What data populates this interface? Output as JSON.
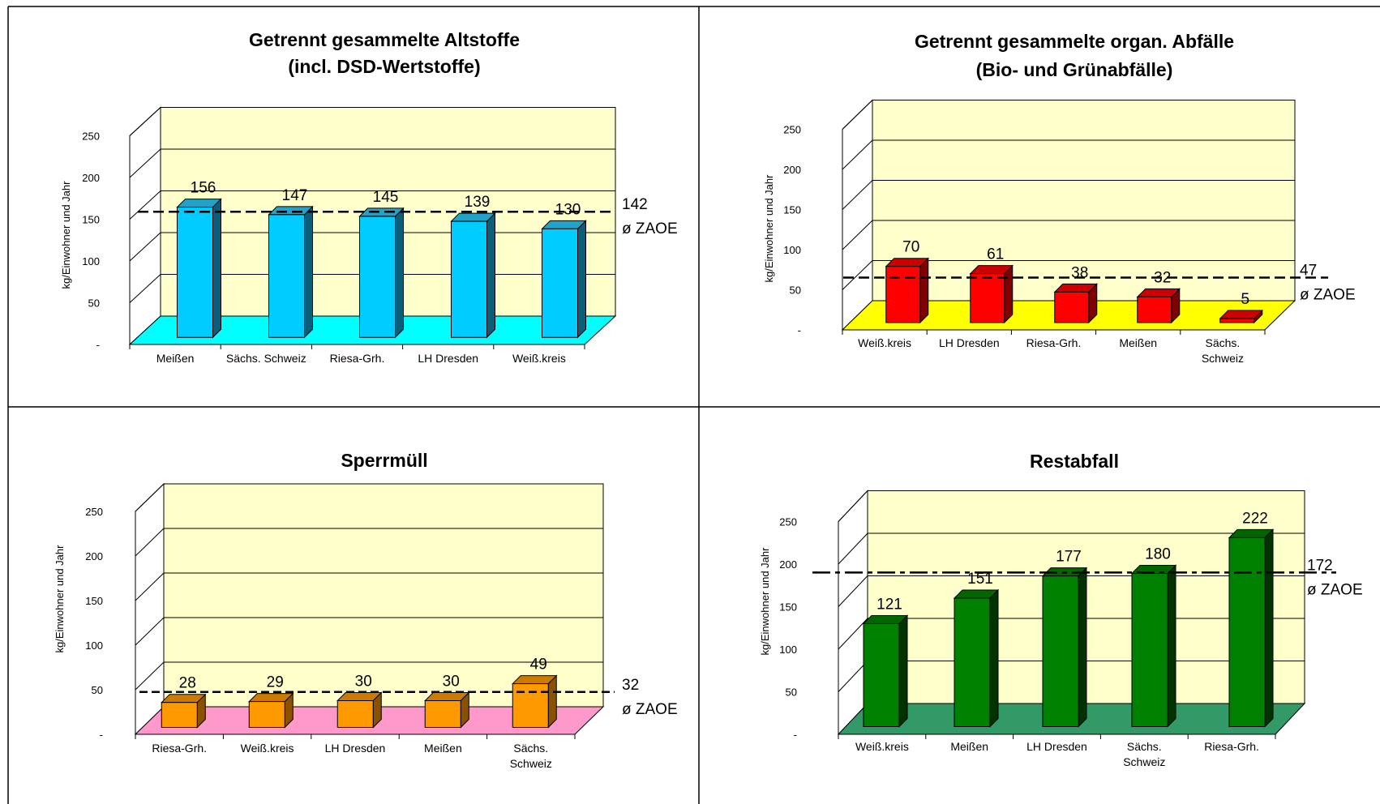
{
  "chart_data": [
    {
      "type": "bar",
      "title_line1": "Getrennt gesammelte Altstoffe",
      "title_line2": "(incl. DSD-Wertstoffe)",
      "ylabel": "kg/Einwohner und Jahr",
      "yticks": [
        "-",
        "50",
        "100",
        "150",
        "200",
        "250"
      ],
      "ylim": [
        0,
        250
      ],
      "categories": [
        [
          "Meißen"
        ],
        [
          "Sächs. Schweiz"
        ],
        [
          "Riesa-Grh."
        ],
        [
          "LH Dresden"
        ],
        [
          "Weiß.kreis"
        ]
      ],
      "values": [
        156,
        147,
        145,
        139,
        130
      ],
      "average": 142,
      "avg_label": "ø ZAOE",
      "colors": {
        "front": "#00CCFF",
        "top": "#21A3C9",
        "side": "#0B5E7A",
        "floor": "#00FFFF",
        "wall": "#FFFFCC"
      }
    },
    {
      "type": "bar",
      "title_line1": "Getrennt gesammelte organ. Abfälle",
      "title_line2": "(Bio- und Grünabfälle)",
      "ylabel": "kg/Einwohner und Jahr",
      "yticks": [
        "-",
        "50",
        "100",
        "150",
        "200",
        "250"
      ],
      "ylim": [
        0,
        250
      ],
      "categories": [
        [
          "Weiß.kreis"
        ],
        [
          "LH Dresden"
        ],
        [
          "Riesa-Grh."
        ],
        [
          "Meißen"
        ],
        [
          "Sächs.",
          "Schweiz"
        ]
      ],
      "values": [
        70,
        61,
        38,
        32,
        5
      ],
      "average": 47,
      "avg_label": "ø ZAOE",
      "colors": {
        "front": "#FF0000",
        "top": "#CC0000",
        "side": "#800000",
        "floor": "#FFFF00",
        "wall": "#FFFFCC"
      }
    },
    {
      "type": "bar",
      "title_line1": "Sperrmüll",
      "title_line2": "",
      "ylabel": "kg/Einwohner und Jahr",
      "yticks": [
        "-",
        "50",
        "100",
        "150",
        "200",
        "250"
      ],
      "ylim": [
        0,
        250
      ],
      "categories": [
        [
          "Riesa-Grh."
        ],
        [
          "Weiß.kreis"
        ],
        [
          "LH Dresden"
        ],
        [
          "Meißen"
        ],
        [
          "Sächs.",
          "Schweiz"
        ]
      ],
      "values": [
        28,
        29,
        30,
        30,
        49
      ],
      "average": 32,
      "avg_label": "ø ZAOE",
      "colors": {
        "front": "#FF9900",
        "top": "#CC7A00",
        "side": "#8A5200",
        "floor": "#FF99CC",
        "wall": "#FFFFCC"
      }
    },
    {
      "type": "bar",
      "title_line1": "Restabfall",
      "title_line2": "",
      "ylabel": "kg/Einwohner und Jahr",
      "yticks": [
        "-",
        "50",
        "100",
        "150",
        "200",
        "250"
      ],
      "ylim": [
        0,
        250
      ],
      "categories": [
        [
          "Weiß.kreis"
        ],
        [
          "Meißen"
        ],
        [
          "LH Dresden"
        ],
        [
          "Sächs.",
          "Schweiz"
        ],
        [
          "Riesa-Grh."
        ]
      ],
      "values": [
        121,
        151,
        177,
        180,
        222
      ],
      "average": 172,
      "avg_label": "ø ZAOE",
      "colors": {
        "front": "#008000",
        "top": "#006600",
        "side": "#003300",
        "floor": "#339966",
        "wall": "#FFFFCC"
      }
    }
  ]
}
